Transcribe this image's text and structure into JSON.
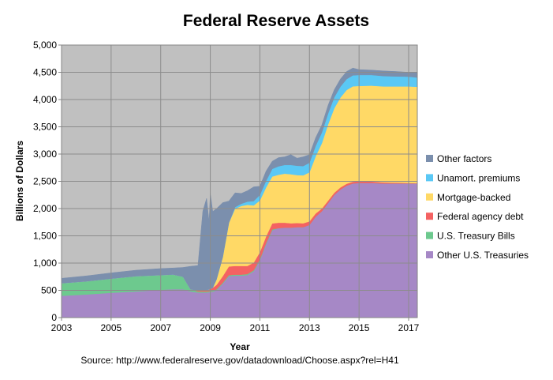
{
  "chart_data": {
    "type": "area",
    "stacked": true,
    "title": "Federal Reserve Assets",
    "xlabel": "Year",
    "ylabel": "Billions of Dollars",
    "source": "Source: http://www.federalreserve.gov/datadownload/Choose.aspx?rel=H41",
    "xlim": [
      2003,
      2017.35
    ],
    "ylim": [
      0,
      5000
    ],
    "x_ticks": [
      "2003",
      "2005",
      "2007",
      "2009",
      "2011",
      "2013",
      "2015",
      "2017"
    ],
    "y_ticks": [
      "0",
      "500",
      "1,000",
      "1,500",
      "2,000",
      "2,500",
      "3,000",
      "3,500",
      "4,000",
      "4,500",
      "5,000"
    ],
    "grid": true,
    "legend_position": "right",
    "x": [
      2003.0,
      2004.0,
      2005.0,
      2006.0,
      2007.0,
      2007.5,
      2007.9,
      2008.2,
      2008.5,
      2008.7,
      2008.85,
      2008.95,
      2009.0,
      2009.1,
      2009.25,
      2009.5,
      2009.75,
      2010.0,
      2010.25,
      2010.5,
      2010.75,
      2011.0,
      2011.25,
      2011.5,
      2011.75,
      2012.0,
      2012.25,
      2012.5,
      2012.75,
      2013.0,
      2013.25,
      2013.5,
      2013.75,
      2014.0,
      2014.25,
      2014.5,
      2014.75,
      2015.0,
      2015.5,
      2016.0,
      2016.5,
      2017.0,
      2017.35
    ],
    "series": [
      {
        "name": "Other U.S. Treasuries",
        "color": "#A688C6",
        "values": [
          400,
          425,
          455,
          480,
          510,
          520,
          520,
          480,
          460,
          460,
          460,
          465,
          470,
          475,
          500,
          620,
          760,
          770,
          770,
          780,
          850,
          1050,
          1350,
          1600,
          1640,
          1650,
          1650,
          1660,
          1660,
          1700,
          1850,
          1950,
          2100,
          2250,
          2350,
          2420,
          2460,
          2470,
          2470,
          2460,
          2460,
          2460,
          2460
        ]
      },
      {
        "name": "U.S. Treasury Bills",
        "color": "#6DC98E",
        "values": [
          230,
          240,
          260,
          280,
          270,
          270,
          230,
          40,
          20,
          18,
          18,
          18,
          18,
          18,
          18,
          18,
          18,
          18,
          18,
          18,
          18,
          18,
          18,
          18,
          0,
          0,
          0,
          0,
          0,
          0,
          0,
          0,
          0,
          0,
          0,
          0,
          0,
          0,
          0,
          0,
          0,
          0,
          0
        ]
      },
      {
        "name": "Federal agency debt",
        "color": "#F46262",
        "values": [
          0,
          0,
          0,
          0,
          0,
          0,
          0,
          0,
          15,
          25,
          30,
          35,
          40,
          55,
          80,
          120,
          160,
          160,
          160,
          150,
          140,
          130,
          120,
          110,
          100,
          90,
          80,
          75,
          70,
          65,
          58,
          50,
          45,
          40,
          38,
          35,
          33,
          30,
          25,
          20,
          15,
          10,
          5
        ]
      },
      {
        "name": "Mortgage-backed",
        "color": "#FFD966",
        "values": [
          0,
          0,
          0,
          0,
          0,
          0,
          0,
          0,
          0,
          0,
          0,
          0,
          0,
          0,
          100,
          350,
          800,
          1050,
          1100,
          1120,
          1050,
          950,
          900,
          860,
          880,
          900,
          900,
          880,
          880,
          900,
          1050,
          1200,
          1400,
          1550,
          1650,
          1720,
          1750,
          1750,
          1760,
          1760,
          1765,
          1770,
          1770
        ]
      },
      {
        "name": "Unamort. premiums",
        "color": "#5AC8F5",
        "values": [
          0,
          0,
          0,
          0,
          0,
          0,
          0,
          0,
          0,
          0,
          0,
          0,
          0,
          0,
          0,
          0,
          0,
          30,
          40,
          60,
          80,
          100,
          120,
          140,
          155,
          160,
          170,
          170,
          170,
          175,
          190,
          195,
          200,
          200,
          200,
          200,
          200,
          200,
          195,
          190,
          185,
          180,
          170
        ]
      },
      {
        "name": "Other factors",
        "color": "#7B8FAD",
        "values": [
          90,
          100,
          105,
          110,
          120,
          120,
          170,
          420,
          460,
          1450,
          1680,
          1250,
          1750,
          1400,
          1300,
          1000,
          400,
          260,
          190,
          200,
          260,
          160,
          180,
          140,
          160,
          150,
          190,
          140,
          170,
          150,
          150,
          140,
          150,
          140,
          140,
          140,
          135,
          100,
          90,
          95,
          90,
          80,
          90
        ]
      }
    ]
  }
}
